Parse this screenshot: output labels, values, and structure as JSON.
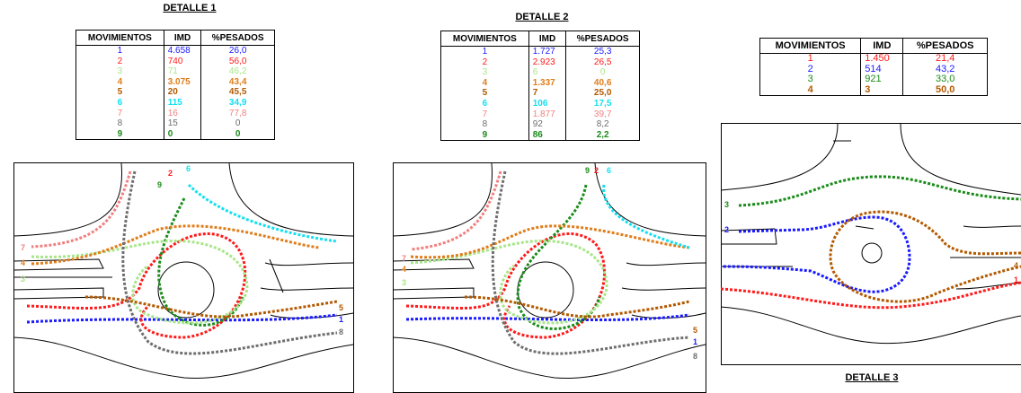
{
  "headers": {
    "mov": "MOVIMIENTOS",
    "imd": "IMD",
    "pes": "%PESADOS"
  },
  "details": [
    {
      "title": "DETALLE 1",
      "rows": [
        {
          "mov": "1",
          "imd": "4.658",
          "pes": "26,0",
          "color": "#1a1aff",
          "bold": false
        },
        {
          "mov": "2",
          "imd": "740",
          "pes": "56,0",
          "color": "#ff1a1a",
          "bold": false
        },
        {
          "mov": "3",
          "imd": "71",
          "pes": "46,2",
          "color": "#a8e68a",
          "bold": false
        },
        {
          "mov": "4",
          "imd": "3.075",
          "pes": "43,4",
          "color": "#e07d1a",
          "bold": true
        },
        {
          "mov": "5",
          "imd": "20",
          "pes": "45,5",
          "color": "#b35900",
          "bold": true
        },
        {
          "mov": "6",
          "imd": "115",
          "pes": "34,9",
          "color": "#12e0f0",
          "bold": true
        },
        {
          "mov": "7",
          "imd": "16",
          "pes": "77,8",
          "color": "#f08080",
          "bold": false
        },
        {
          "mov": "8",
          "imd": "15",
          "pes": "0",
          "color": "#6e6e6e",
          "bold": false
        },
        {
          "mov": "9",
          "imd": "0",
          "pes": "0",
          "color": "#1a8c1a",
          "bold": true
        }
      ],
      "labels": {
        "l7": "7",
        "l4": "4",
        "l3": "3",
        "l2": "2",
        "l6": "6",
        "l9": "9",
        "l5": "5",
        "l1": "1",
        "l8": "8"
      }
    },
    {
      "title": "DETALLE 2",
      "rows": [
        {
          "mov": "1",
          "imd": "1.727",
          "pes": "25,3",
          "color": "#1a1aff",
          "bold": false
        },
        {
          "mov": "2",
          "imd": "2.923",
          "pes": "26,5",
          "color": "#ff1a1a",
          "bold": false
        },
        {
          "mov": "3",
          "imd": "6",
          "pes": "0",
          "color": "#a8e68a",
          "bold": false
        },
        {
          "mov": "4",
          "imd": "1.337",
          "pes": "40,6",
          "color": "#e07d1a",
          "bold": true
        },
        {
          "mov": "5",
          "imd": "7",
          "pes": "25,0",
          "color": "#b35900",
          "bold": true
        },
        {
          "mov": "6",
          "imd": "106",
          "pes": "17,5",
          "color": "#12e0f0",
          "bold": true
        },
        {
          "mov": "7",
          "imd": "1.877",
          "pes": "39,7",
          "color": "#f08080",
          "bold": false
        },
        {
          "mov": "8",
          "imd": "92",
          "pes": "8,2",
          "color": "#6e6e6e",
          "bold": false
        },
        {
          "mov": "9",
          "imd": "86",
          "pes": "2,2",
          "color": "#1a8c1a",
          "bold": true
        }
      ],
      "labels": {
        "l7": "7",
        "l4": "4",
        "l3": "3",
        "l9": "9",
        "l2": "2",
        "l6": "6",
        "l5": "5",
        "l1": "1",
        "l8": "8"
      }
    },
    {
      "title": "DETALLE 3",
      "rows": [
        {
          "mov": "1",
          "imd": "1.450",
          "pes": "21,4",
          "color": "#ff1a1a",
          "bold": false
        },
        {
          "mov": "2",
          "imd": "514",
          "pes": "43,2",
          "color": "#1a1aff",
          "bold": false
        },
        {
          "mov": "3",
          "imd": "921",
          "pes": "33,0",
          "color": "#1a8c1a",
          "bold": false
        },
        {
          "mov": "4",
          "imd": "3",
          "pes": "50,0",
          "color": "#b35900",
          "bold": true
        }
      ],
      "labels": {
        "l3": "3",
        "l2": "2",
        "l4": "4",
        "l1": "1"
      }
    }
  ]
}
